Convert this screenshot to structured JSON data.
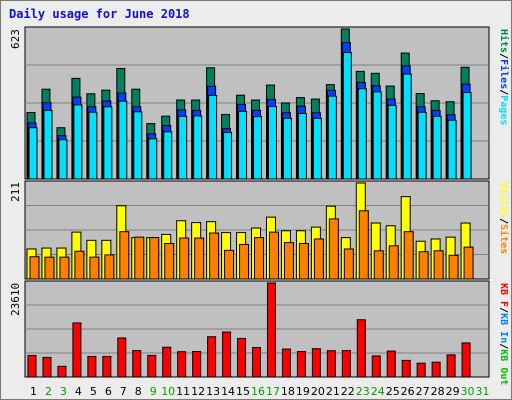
{
  "title": "Daily usage for June 2018",
  "colors": {
    "background": "#ececec",
    "panel": "#c0c0c0",
    "hits": "#00805c",
    "files": "#0040ff",
    "pages": "#00e0ff",
    "visits": "#ffff00",
    "sites": "#ff8000",
    "kbin": "#0080ff",
    "kbout": "#00c000",
    "kbf": "#ff0000",
    "weekday_label": "#000000",
    "weekend_label": "#00a000"
  },
  "right_labels": {
    "top": [
      "Hits",
      "/",
      "Files",
      "/",
      "Pages"
    ],
    "mid": [
      "Visits",
      "/",
      "Sites"
    ],
    "bot": [
      "KB F",
      "/",
      "KB In",
      "/",
      "KB Out"
    ]
  },
  "chart_data": [
    {
      "type": "bar",
      "title": "Daily usage for June 2018",
      "ymax_label": "623",
      "ylim": [
        0,
        623
      ],
      "categories": [
        "1",
        "2",
        "3",
        "4",
        "5",
        "6",
        "7",
        "8",
        "9",
        "10",
        "11",
        "12",
        "13",
        "14",
        "15",
        "16",
        "17",
        "18",
        "19",
        "20",
        "21",
        "22",
        "23",
        "24",
        "25",
        "26",
        "27",
        "28",
        "29",
        "30",
        "31"
      ],
      "weekend_days": [
        "2",
        "3",
        "9",
        "10",
        "16",
        "17",
        "23",
        "24",
        "30",
        "31"
      ],
      "series": [
        {
          "name": "Hits",
          "values": [
            276,
            373,
            213,
            418,
            354,
            369,
            459,
            373,
            230,
            261,
            328,
            328,
            462,
            268,
            348,
            328,
            390,
            316,
            338,
            332,
            392,
            623,
            447,
            439,
            386,
            523,
            355,
            325,
            321,
            464,
            0
          ]
        },
        {
          "name": "Files",
          "values": [
            233,
            317,
            180,
            340,
            300,
            324,
            357,
            300,
            187,
            222,
            287,
            285,
            385,
            209,
            310,
            285,
            330,
            275,
            302,
            275,
            368,
            567,
            401,
            387,
            332,
            470,
            300,
            285,
            267,
            394,
            0
          ]
        },
        {
          "name": "Pages",
          "values": [
            213,
            285,
            163,
            308,
            277,
            300,
            323,
            279,
            167,
            196,
            260,
            262,
            347,
            193,
            281,
            259,
            301,
            252,
            272,
            252,
            344,
            525,
            375,
            362,
            306,
            436,
            277,
            260,
            244,
            359,
            0
          ]
        }
      ]
    },
    {
      "type": "bar",
      "ymax_label": "211",
      "ylim": [
        0,
        211
      ],
      "categories": [
        "1",
        "2",
        "3",
        "4",
        "5",
        "6",
        "7",
        "8",
        "9",
        "10",
        "11",
        "12",
        "13",
        "14",
        "15",
        "16",
        "17",
        "18",
        "19",
        "20",
        "21",
        "22",
        "23",
        "24",
        "25",
        "26",
        "27",
        "28",
        "29",
        "30",
        "31"
      ],
      "series": [
        {
          "name": "Visits",
          "values": [
            66,
            68,
            68,
            103,
            85,
            85,
            161,
            91,
            91,
            98,
            128,
            124,
            126,
            102,
            102,
            112,
            136,
            106,
            106,
            114,
            160,
            91,
            211,
            123,
            117,
            181,
            83,
            88,
            92,
            123,
            0
          ]
        },
        {
          "name": "Sites",
          "values": [
            49,
            48,
            48,
            61,
            48,
            53,
            104,
            92,
            91,
            78,
            90,
            90,
            101,
            63,
            76,
            91,
            103,
            80,
            78,
            88,
            132,
            66,
            150,
            62,
            73,
            104,
            60,
            62,
            52,
            70,
            0
          ]
        }
      ]
    },
    {
      "type": "bar",
      "ymax_label": "23610",
      "ylim": [
        0,
        23610
      ],
      "categories": [
        "1",
        "2",
        "3",
        "4",
        "5",
        "6",
        "7",
        "8",
        "9",
        "10",
        "11",
        "12",
        "13",
        "14",
        "15",
        "16",
        "17",
        "18",
        "19",
        "20",
        "21",
        "22",
        "23",
        "24",
        "25",
        "26",
        "27",
        "28",
        "29",
        "30",
        "31"
      ],
      "series": [
        {
          "name": "KB F",
          "values": [
            5410,
            4920,
            2680,
            13580,
            5170,
            5170,
            9800,
            6640,
            5420,
            7470,
            6350,
            6400,
            10110,
            11290,
            9690,
            7410,
            23610,
            7010,
            6390,
            7100,
            6600,
            6640,
            14380,
            5300,
            6510,
            4170,
            3460,
            3710,
            5550,
            8560,
            0
          ]
        }
      ]
    }
  ]
}
